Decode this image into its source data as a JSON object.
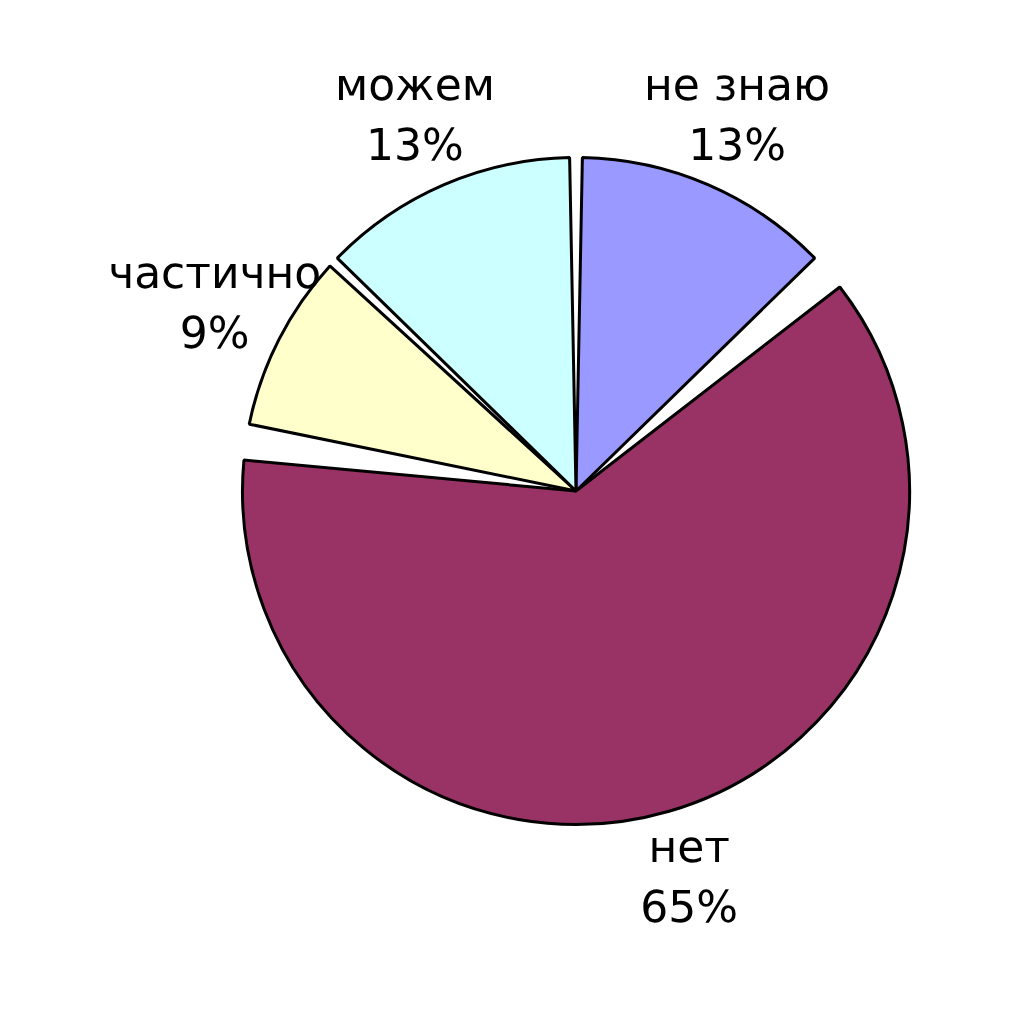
{
  "chart_data": {
    "type": "pie",
    "categories": [
      "не знаю",
      "нет",
      "частично",
      "можем"
    ],
    "values": [
      13,
      65,
      9,
      13
    ],
    "value_labels": [
      "13%",
      "65%",
      "9%",
      "13%"
    ],
    "colors": [
      "#9999ff",
      "#993366",
      "#ffffcc",
      "#ccffff"
    ],
    "legend": false
  }
}
